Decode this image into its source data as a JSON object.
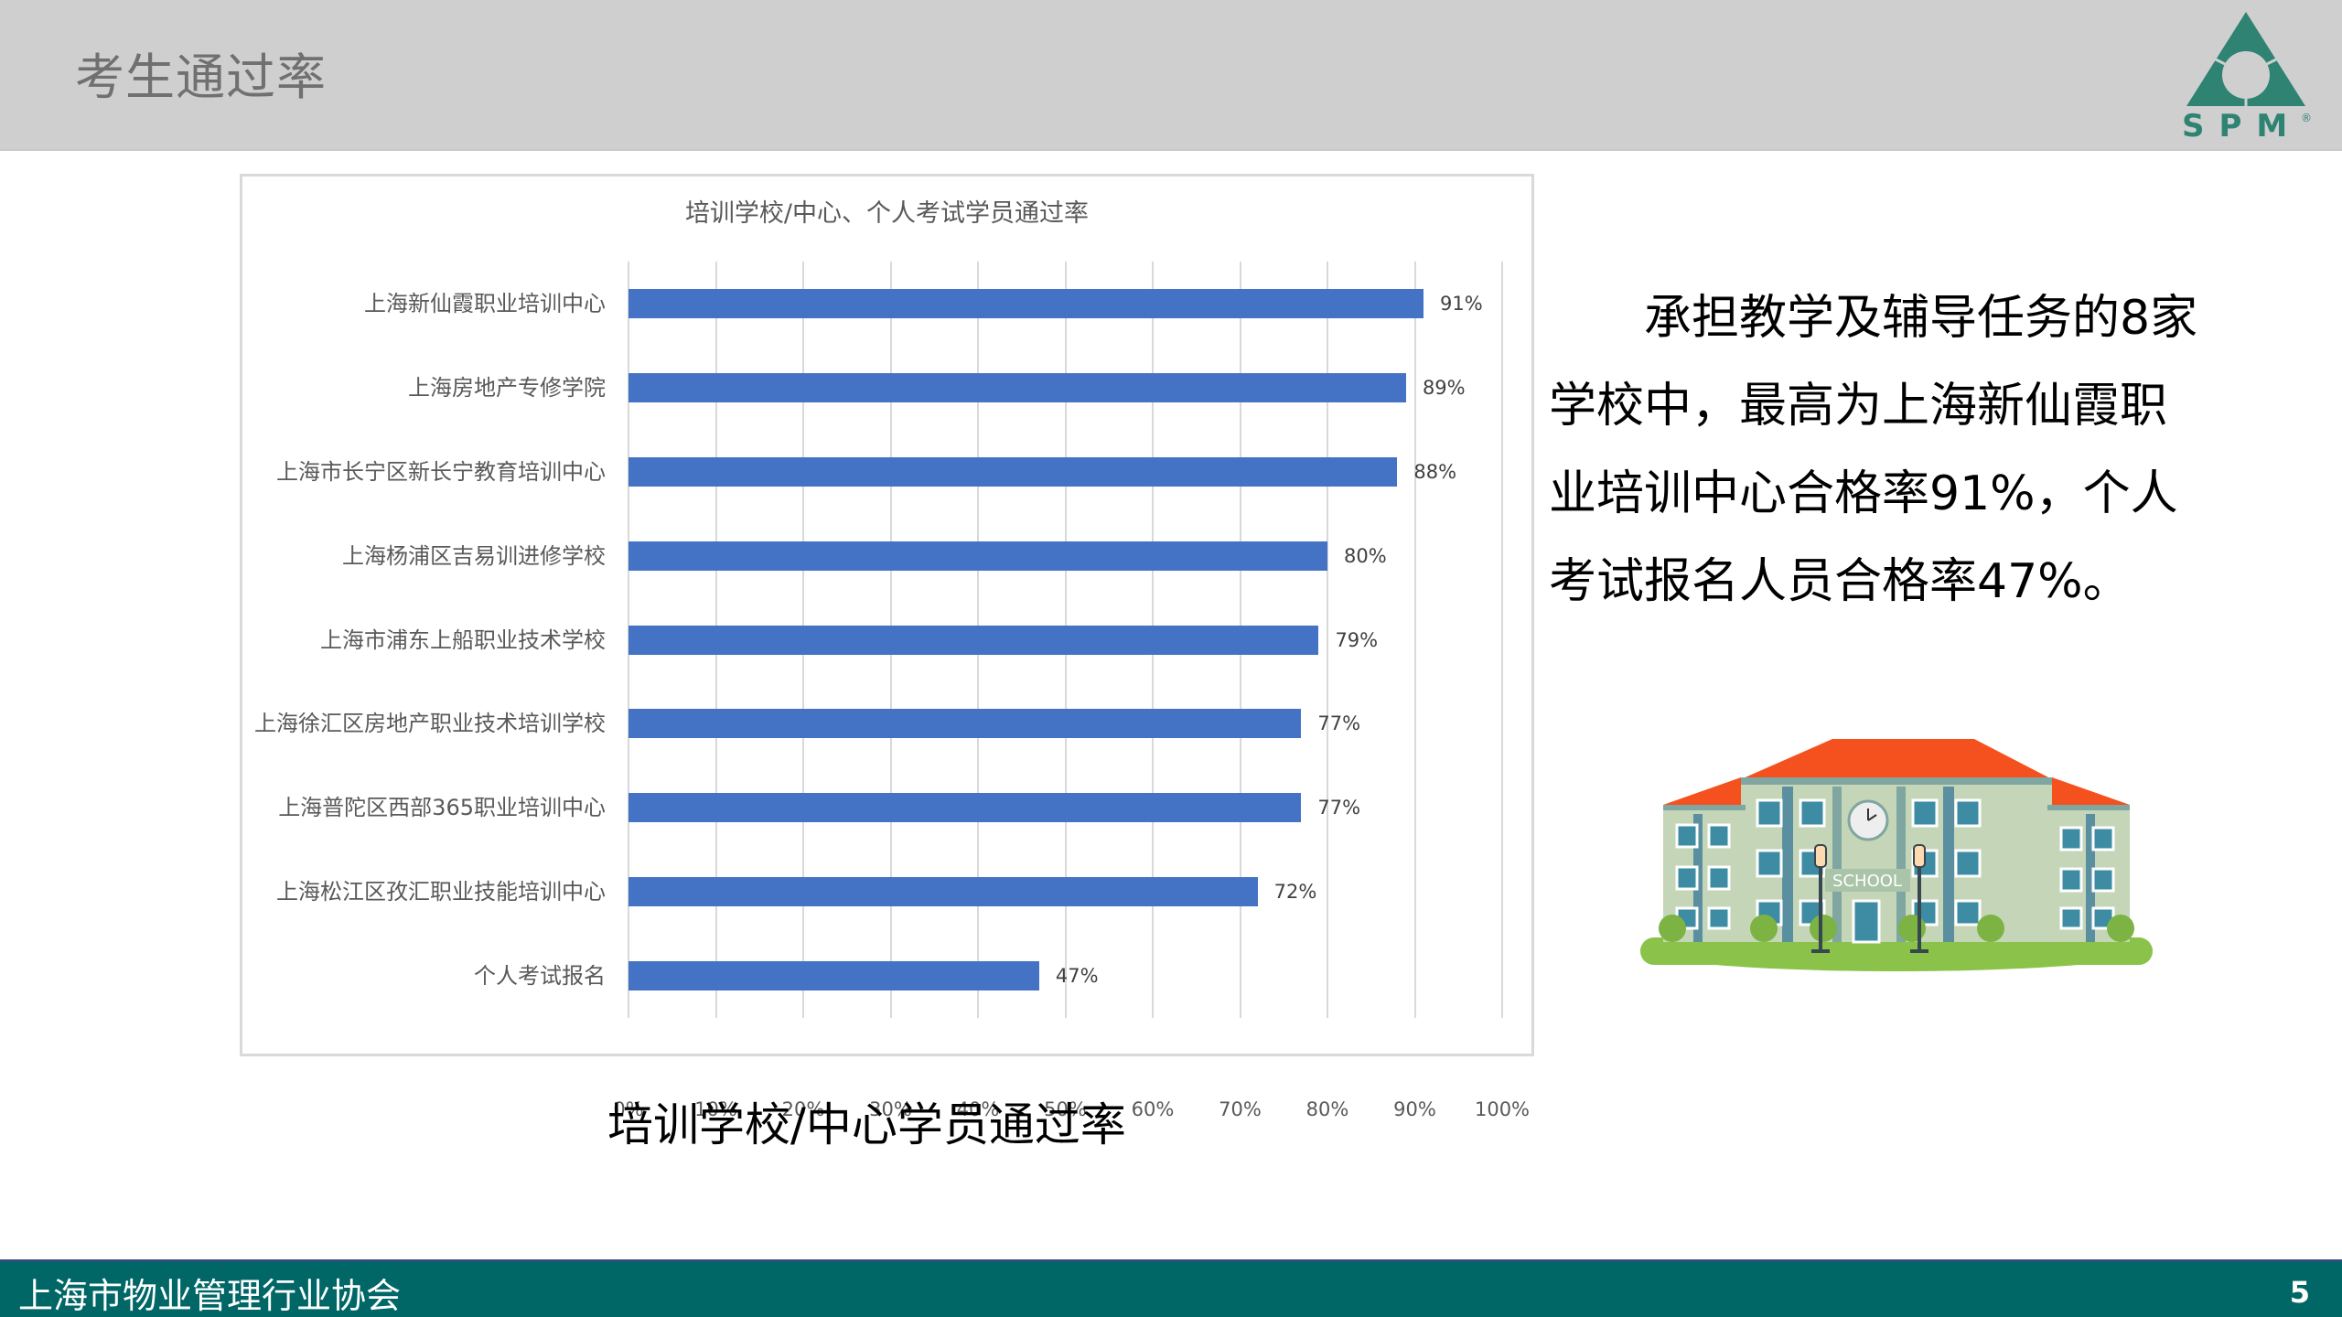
{
  "header": {
    "title": "考生通过率",
    "logo_text": "SPM",
    "logo_mark": "®"
  },
  "chart_data": {
    "type": "bar",
    "orientation": "horizontal",
    "title": "培训学校/中心、个人考试学员通过率",
    "categories": [
      "上海新仙霞职业培训中心",
      "上海房地产专修学院",
      "上海市长宁区新长宁教育培训中心",
      "上海杨浦区吉易训进修学校",
      "上海市浦东上船职业技术学校",
      "上海徐汇区房地产职业技术培训学校",
      "上海普陀区西部365职业培训中心",
      "上海松江区孜汇职业技能培训中心",
      "个人考试报名"
    ],
    "values": [
      91,
      89,
      88,
      80,
      79,
      77,
      77,
      72,
      47
    ],
    "value_labels": [
      "91%",
      "89%",
      "88%",
      "80%",
      "79%",
      "77%",
      "77%",
      "72%",
      "47%"
    ],
    "xlabel": "",
    "ylabel": "",
    "xlim": [
      0,
      100
    ],
    "xticks": [
      "0%",
      "10%",
      "20%",
      "30%",
      "40%",
      "50%",
      "60%",
      "70%",
      "80%",
      "90%",
      "100%"
    ],
    "grid": true,
    "legend": "none",
    "bar_color": "#4472c4"
  },
  "caption": "培训学校/中心学员通过率",
  "summary": {
    "text": "承担教学及辅导任务的8家学校中，最高为上海新仙霞职业培训中心合格率91%，个人考试报名人员合格率47%。"
  },
  "illustration": {
    "sign_text": "SCHOOL"
  },
  "footer": {
    "organization": "上海市物业管理行业协会",
    "page_number": "5"
  },
  "colors": {
    "header_bg": "#d0cfd0",
    "footer_bg": "#006666",
    "brand_green": "#2e8372",
    "bar": "#4472c4"
  }
}
